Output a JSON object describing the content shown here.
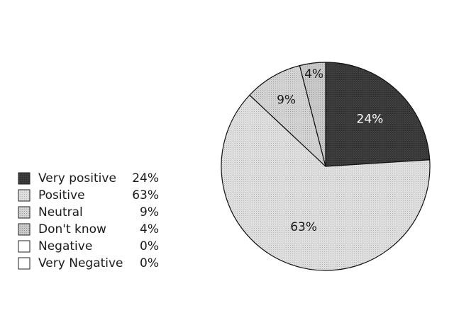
{
  "chart_data": {
    "type": "pie",
    "title": "",
    "legend_position": "left",
    "slices": [
      {
        "label": "Very positive",
        "value": 24,
        "value_label": "24%",
        "show_on_pie": true,
        "fill": "#3c3c3c",
        "label_color": "#ffffff",
        "pattern_dot": "#262626"
      },
      {
        "label": "Positive",
        "value": 63,
        "value_label": "63%",
        "show_on_pie": true,
        "fill": "#dedede",
        "label_color": "#1a1a1a",
        "pattern_dot": "#b8b8b8"
      },
      {
        "label": "Neutral",
        "value": 9,
        "value_label": "9%",
        "show_on_pie": true,
        "fill": "#d3d3d3",
        "label_color": "#1a1a1a",
        "pattern_dot": "#a8a8a8"
      },
      {
        "label": "Don't know",
        "value": 4,
        "value_label": "4%",
        "show_on_pie": true,
        "fill": "#c9c9c9",
        "label_color": "#1a1a1a",
        "pattern_dot": "#9a9a9a"
      },
      {
        "label": "Negative",
        "value": 0,
        "value_label": "0%",
        "show_on_pie": false,
        "fill": "#ffffff",
        "label_color": "#1a1a1a",
        "pattern_dot": "#ffffff"
      },
      {
        "label": "Very Negative",
        "value": 0,
        "value_label": "0%",
        "show_on_pie": false,
        "fill": "#ffffff",
        "label_color": "#1a1a1a",
        "pattern_dot": "#ffffff"
      }
    ]
  }
}
